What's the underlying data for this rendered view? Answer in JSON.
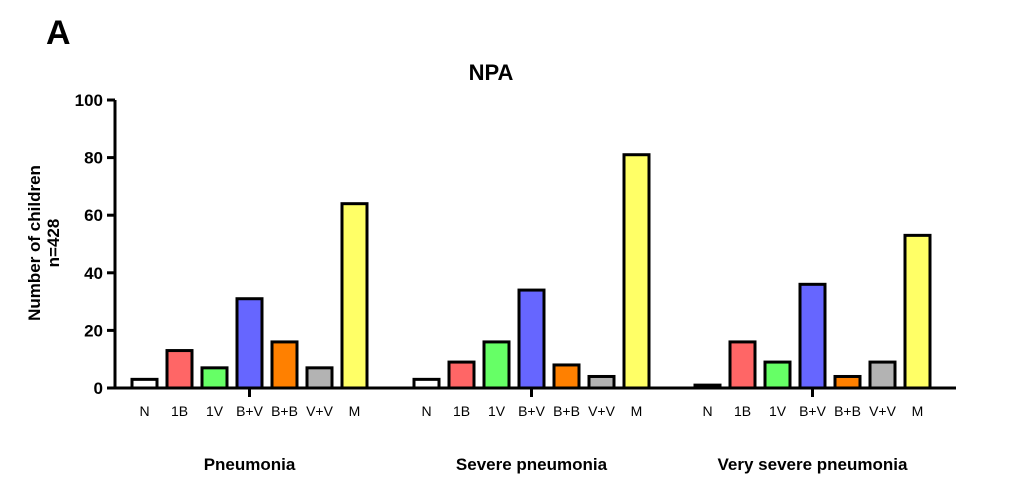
{
  "panel_label": "A",
  "chart_data": {
    "type": "bar",
    "title": "NPA",
    "ylabel_lines": [
      "Number of children",
      "n=428"
    ],
    "ylim": [
      0,
      100
    ],
    "yticks": [
      0,
      20,
      40,
      60,
      80,
      100
    ],
    "categories": [
      "N",
      "1B",
      "1V",
      "B+V",
      "B+B",
      "V+V",
      "M"
    ],
    "colors": [
      "#ffffff",
      "#ff6666",
      "#66ff66",
      "#6666ff",
      "#ff8000",
      "#b3b3b3",
      "#ffff66"
    ],
    "groups": [
      {
        "name": "Pneumonia",
        "values": [
          3,
          13,
          7,
          31,
          16,
          7,
          64
        ]
      },
      {
        "name": "Severe pneumonia",
        "values": [
          3,
          9,
          16,
          34,
          8,
          4,
          81
        ]
      },
      {
        "name": "Very severe pneumonia",
        "values": [
          1,
          16,
          9,
          36,
          4,
          9,
          53
        ]
      }
    ]
  }
}
